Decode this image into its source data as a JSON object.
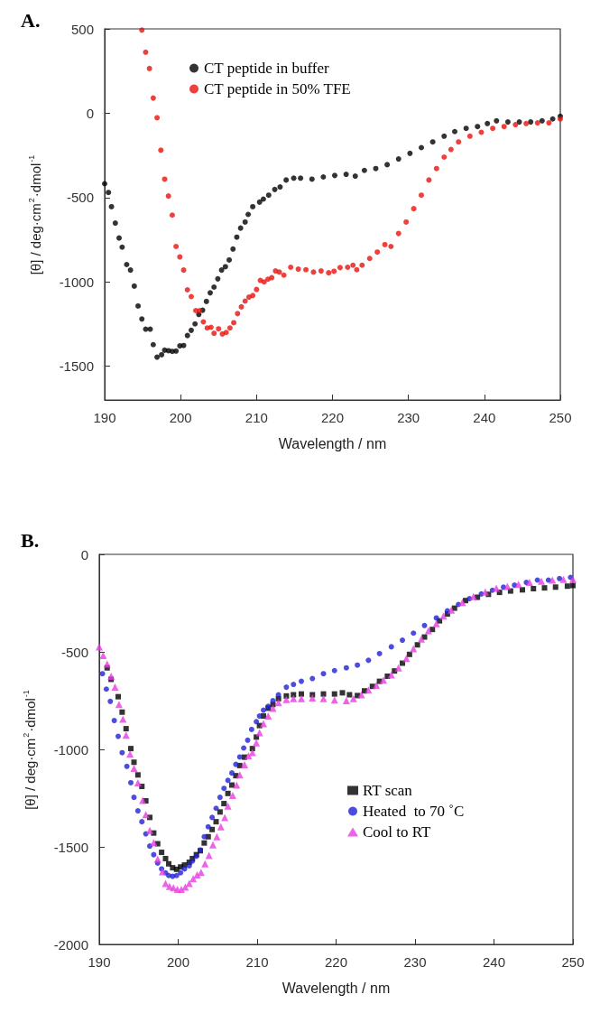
{
  "chart_data": [
    {
      "type": "scatter",
      "title": "A.",
      "xlabel": "Wavelength / nm",
      "ylabel": "[θ] / deg·cm$^{2}$·dmol$^{-1}$",
      "xlim": [
        190,
        250
      ],
      "xticks": [
        190,
        200,
        210,
        220,
        230,
        240,
        250
      ],
      "ylim": [
        -1700,
        500
      ],
      "yticks": [
        -1500,
        -1000,
        -500,
        0,
        500
      ],
      "grid": false,
      "legend": "top",
      "marker": "circle",
      "series": [
        {
          "name": "CT peptide in buffer",
          "color": "#000000",
          "x": [
            190,
            190.5,
            190.9,
            191.4,
            191.9,
            192.3,
            192.9,
            193.4,
            193.9,
            194.4,
            194.9,
            195.4,
            196,
            196.4,
            196.9,
            197.5,
            197.9,
            198.4,
            198.9,
            199.4,
            199.9,
            200.4,
            200.9,
            201.4,
            201.9,
            202.4,
            202.9,
            203.4,
            203.9,
            204.4,
            204.9,
            205.4,
            205.9,
            206.4,
            206.9,
            207.4,
            207.9,
            208.5,
            208.9,
            209.5,
            210.4,
            210.9,
            211.6,
            212.4,
            213.1,
            213.9,
            214.9,
            215.8,
            217.3,
            218.8,
            220.3,
            221.8,
            223,
            224.2,
            225.7,
            227.2,
            228.7,
            230.2,
            231.7,
            233.2,
            234.7,
            236.1,
            237.6,
            239.1,
            240.4,
            241.6,
            243.1,
            244.6,
            246.1,
            247.6,
            249,
            250
          ],
          "values": [
            -418,
            -470,
            -554,
            -651,
            -740,
            -794,
            -897,
            -930,
            -1025,
            -1143,
            -1220,
            -1280,
            -1280,
            -1372,
            -1446,
            -1432,
            -1405,
            -1408,
            -1412,
            -1410,
            -1379,
            -1377,
            -1318,
            -1287,
            -1249,
            -1193,
            -1168,
            -1116,
            -1065,
            -1031,
            -982,
            -930,
            -910,
            -870,
            -805,
            -735,
            -681,
            -645,
            -600,
            -554,
            -527,
            -509,
            -486,
            -452,
            -437,
            -396,
            -385,
            -385,
            -391,
            -378,
            -369,
            -362,
            -373,
            -339,
            -328,
            -305,
            -271,
            -238,
            -204,
            -170,
            -136,
            -109,
            -90,
            -79,
            -61,
            -45,
            -52,
            -52,
            -52,
            -45,
            -34,
            -18
          ]
        },
        {
          "name": "CT peptide in 50% TFE",
          "color": "#e8120c",
          "x": [
            194.9,
            195.4,
            195.9,
            196.4,
            196.9,
            197.4,
            197.9,
            198.4,
            198.9,
            199.4,
            199.9,
            200.4,
            200.9,
            201.4,
            202,
            202.5,
            203,
            203.5,
            204,
            204.4,
            205,
            205.5,
            206,
            206.5,
            207,
            207.5,
            208,
            208.5,
            209,
            209.5,
            210,
            210.5,
            211,
            211.5,
            212,
            212.5,
            213,
            213.6,
            214.5,
            215.5,
            216.5,
            217.5,
            218.5,
            219.5,
            220.2,
            221,
            222,
            222.7,
            223.2,
            223.9,
            224.9,
            225.9,
            226.9,
            227.7,
            228.7,
            229.7,
            230.7,
            231.7,
            232.7,
            233.7,
            234.7,
            235.6,
            236.6,
            238.1,
            239.6,
            241.1,
            242.6,
            244.1,
            245.5,
            247,
            248.5,
            250
          ],
          "values": [
            493,
            362,
            265,
            90,
            -27,
            -219,
            -391,
            -491,
            -604,
            -790,
            -852,
            -930,
            -1047,
            -1087,
            -1170,
            -1170,
            -1237,
            -1273,
            -1269,
            -1305,
            -1278,
            -1309,
            -1300,
            -1273,
            -1242,
            -1188,
            -1148,
            -1114,
            -1090,
            -1081,
            -1045,
            -991,
            -1000,
            -984,
            -975,
            -935,
            -942,
            -960,
            -913,
            -924,
            -928,
            -942,
            -935,
            -946,
            -937,
            -915,
            -913,
            -901,
            -928,
            -901,
            -861,
            -823,
            -779,
            -790,
            -713,
            -645,
            -566,
            -486,
            -396,
            -328,
            -260,
            -215,
            -170,
            -136,
            -113,
            -90,
            -79,
            -68,
            -61,
            -57,
            -57,
            -34
          ]
        }
      ]
    },
    {
      "type": "scatter",
      "title": "B.",
      "xlabel": "Wavelength / nm",
      "ylabel": "[θ] / deg·cm$^{2}$·dmol$^{-1}$",
      "xlim": [
        190,
        250
      ],
      "xticks": [
        190,
        200,
        210,
        220,
        230,
        240,
        250
      ],
      "ylim": [
        -2000,
        0
      ],
      "yticks": [
        -2000,
        -1500,
        -1000,
        -500,
        0
      ],
      "grid": false,
      "legend": "right",
      "series": [
        {
          "name": "RT scan",
          "color": "#000000",
          "marker": "square",
          "x": [
            191,
            191.5,
            192.4,
            192.9,
            193.4,
            194,
            194.4,
            194.9,
            195.4,
            195.9,
            196.4,
            196.9,
            197.4,
            197.9,
            198.4,
            198.8,
            199.3,
            199.8,
            200.3,
            200.8,
            201.4,
            201.8,
            202.3,
            202.8,
            203.3,
            203.8,
            204.3,
            204.8,
            205.3,
            205.8,
            206.3,
            206.8,
            207.3,
            207.8,
            208.4,
            209.4,
            209.9,
            210.3,
            210.8,
            211.4,
            212,
            212.7,
            213.7,
            214.6,
            215.6,
            217,
            218.4,
            219.8,
            220.8,
            221.7,
            222.7,
            223.6,
            224.6,
            225.5,
            226.5,
            227.4,
            228.4,
            229.3,
            230.3,
            231.2,
            232.2,
            233.1,
            234.1,
            235,
            236.4,
            237.9,
            239.3,
            240.7,
            242.1,
            243.6,
            245,
            246.4,
            247.8,
            249.3,
            250
          ],
          "values": [
            -582,
            -641,
            -730,
            -809,
            -894,
            -996,
            -1066,
            -1131,
            -1190,
            -1264,
            -1349,
            -1429,
            -1484,
            -1528,
            -1560,
            -1587,
            -1607,
            -1615,
            -1603,
            -1593,
            -1579,
            -1560,
            -1540,
            -1520,
            -1480,
            -1448,
            -1411,
            -1371,
            -1321,
            -1278,
            -1226,
            -1183,
            -1135,
            -1083,
            -1040,
            -996,
            -937,
            -878,
            -829,
            -789,
            -770,
            -740,
            -726,
            -720,
            -716,
            -720,
            -716,
            -716,
            -710,
            -720,
            -724,
            -700,
            -677,
            -651,
            -625,
            -598,
            -558,
            -513,
            -464,
            -424,
            -385,
            -341,
            -306,
            -276,
            -237,
            -220,
            -205,
            -195,
            -188,
            -182,
            -176,
            -172,
            -168,
            -163,
            -160
          ]
        },
        {
          "name": "Heated  to 70 ˚C",
          "color": "#1f1fd6",
          "marker": "circle",
          "x": [
            190.4,
            190.9,
            191.4,
            191.9,
            192.4,
            192.9,
            193.5,
            194,
            194.4,
            194.9,
            195.4,
            195.9,
            196.4,
            196.9,
            197.4,
            197.9,
            198.4,
            198.8,
            199.3,
            199.8,
            200.3,
            200.8,
            201.4,
            201.8,
            202.3,
            202.8,
            203.3,
            203.8,
            204.3,
            204.8,
            205.3,
            205.8,
            206.3,
            206.8,
            207.3,
            207.8,
            208.3,
            208.8,
            209.3,
            209.9,
            210.3,
            210.8,
            211.4,
            212,
            212.7,
            213.7,
            214.6,
            215.6,
            217,
            218.4,
            219.8,
            221.3,
            222.7,
            224.1,
            225.5,
            227,
            228.4,
            229.8,
            231.2,
            232.7,
            234.1,
            235.5,
            236.9,
            238.4,
            239.8,
            241.2,
            242.6,
            244.1,
            245.5,
            246.9,
            248.3,
            249.7
          ],
          "values": [
            -612,
            -691,
            -754,
            -852,
            -933,
            -1017,
            -1087,
            -1171,
            -1246,
            -1315,
            -1371,
            -1433,
            -1496,
            -1540,
            -1583,
            -1613,
            -1633,
            -1647,
            -1651,
            -1647,
            -1633,
            -1613,
            -1597,
            -1573,
            -1548,
            -1516,
            -1448,
            -1397,
            -1349,
            -1302,
            -1246,
            -1200,
            -1159,
            -1121,
            -1077,
            -1039,
            -993,
            -953,
            -898,
            -858,
            -829,
            -799,
            -779,
            -750,
            -720,
            -681,
            -667,
            -651,
            -637,
            -612,
            -596,
            -582,
            -568,
            -543,
            -509,
            -474,
            -440,
            -404,
            -365,
            -326,
            -290,
            -257,
            -227,
            -203,
            -184,
            -168,
            -158,
            -144,
            -132,
            -132,
            -124,
            -118
          ]
        },
        {
          "name": "Cool to RT",
          "color": "#e83ce0",
          "marker": "triangle",
          "x": [
            190,
            190.5,
            191,
            191.5,
            192,
            192.5,
            193,
            193.4,
            193.9,
            194.4,
            194.9,
            195.5,
            195.9,
            196.4,
            196.9,
            197.4,
            198,
            198.4,
            198.9,
            199.4,
            199.9,
            200.4,
            200.9,
            201.4,
            201.9,
            202.4,
            202.9,
            203.4,
            203.9,
            204.4,
            204.9,
            205.4,
            205.9,
            206.3,
            206.9,
            207.4,
            207.8,
            208.4,
            208.9,
            209.4,
            209.9,
            210.3,
            210.8,
            211.4,
            212,
            212.7,
            213.7,
            214.6,
            215.6,
            217,
            218.4,
            219.8,
            221.3,
            222.2,
            223.2,
            224.1,
            225.1,
            226,
            227,
            227.9,
            228.9,
            229.8,
            230.8,
            231.7,
            232.7,
            233.6,
            234.6,
            236,
            237.4,
            238.9,
            240.3,
            241.7,
            243.1,
            244.5,
            246,
            247.4,
            248.8,
            250
          ],
          "values": [
            -474,
            -519,
            -562,
            -625,
            -681,
            -770,
            -845,
            -927,
            -1024,
            -1097,
            -1171,
            -1262,
            -1335,
            -1415,
            -1478,
            -1563,
            -1627,
            -1687,
            -1702,
            -1710,
            -1718,
            -1718,
            -1706,
            -1687,
            -1663,
            -1643,
            -1631,
            -1587,
            -1544,
            -1490,
            -1448,
            -1397,
            -1349,
            -1290,
            -1236,
            -1183,
            -1131,
            -1079,
            -1032,
            -1016,
            -967,
            -914,
            -868,
            -829,
            -789,
            -760,
            -744,
            -740,
            -740,
            -736,
            -740,
            -746,
            -750,
            -740,
            -720,
            -696,
            -671,
            -645,
            -618,
            -582,
            -533,
            -484,
            -434,
            -391,
            -355,
            -316,
            -286,
            -247,
            -217,
            -193,
            -174,
            -164,
            -154,
            -144,
            -138,
            -132,
            -128,
            -128
          ]
        }
      ]
    }
  ]
}
